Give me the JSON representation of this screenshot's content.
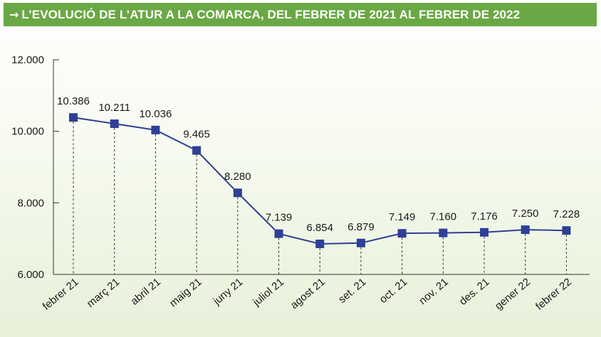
{
  "header": {
    "arrow_icon": "arrow-right-icon",
    "arrow_glyph": "→",
    "title": "L’EVOLUCIÓ DE L’ATUR A LA COMARCA, DEL FEBRER DE 2021 AL FEBRER DE 2022",
    "background_color": "#6aa845"
  },
  "chart_data": {
    "type": "line",
    "title": "L’EVOLUCIÓ DE L’ATUR A LA COMARCA, DEL FEBRER DE 2021 AL FEBRER DE 2022",
    "categories": [
      "febrer 21",
      "març 21",
      "abril 21",
      "maig 21",
      "juny 21",
      "juliol 21",
      "agost 21",
      "set. 21",
      "oct. 21",
      "nov. 21",
      "des. 21",
      "gener 22",
      "febrer 22"
    ],
    "series": [
      {
        "values": [
          10386,
          10211,
          10036,
          9465,
          8280,
          7139,
          6854,
          6879,
          7149,
          7160,
          7176,
          7250,
          7228
        ],
        "labels": [
          "10.386",
          "10.211",
          "10.036",
          "9.465",
          "8.280",
          "7.139",
          "6.854",
          "6.879",
          "7.149",
          "7.160",
          "7.176",
          "7.250",
          "7.228"
        ],
        "color": "#2e3f96"
      }
    ],
    "ylim": [
      6000,
      12000
    ],
    "yticks": [
      6000,
      8000,
      10000,
      12000
    ],
    "ytick_labels": [
      "6.000",
      "8.000",
      "10.000",
      "12.000"
    ],
    "xlabel": "",
    "ylabel": "",
    "grid": false,
    "drop_lines": true,
    "marker": "square"
  }
}
